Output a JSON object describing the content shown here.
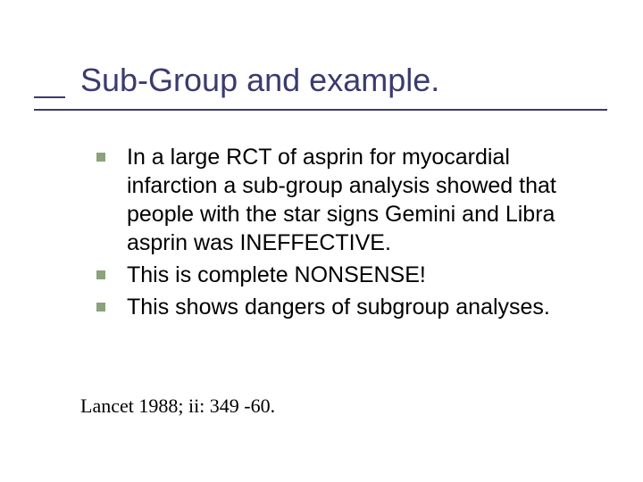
{
  "colors": {
    "title_color": "#3a3b6e",
    "underline_color": "#3a3b6e",
    "bullet_color": "#8aa37b",
    "body_text_color": "#000000",
    "background": "#ffffff"
  },
  "typography": {
    "title_fontsize": 36,
    "body_fontsize": 25,
    "citation_fontsize": 22,
    "title_font": "Verdana",
    "body_font": "Verdana",
    "citation_font": "Times New Roman"
  },
  "title": "Sub-Group and example.",
  "bullets": [
    "In a large RCT of asprin for myocardial infarction a sub-group analysis showed that people with the star signs Gemini and Libra asprin was INEFFECTIVE.",
    "This is complete NONSENSE!",
    "This shows dangers of subgroup analyses."
  ],
  "citation": "Lancet 1988; ii: 349 -60."
}
